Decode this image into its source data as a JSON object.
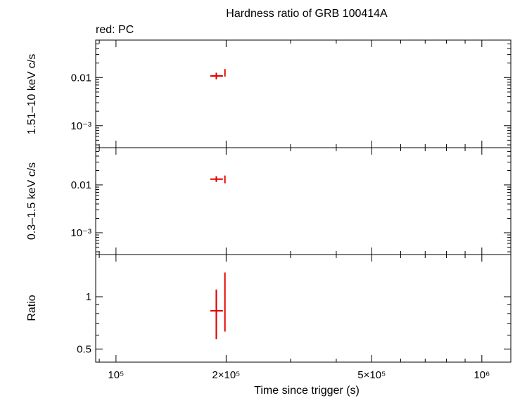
{
  "chart_data": {
    "type": "scatter",
    "title": "Hardness ratio of GRB 100414A",
    "subtitle": "red: PC",
    "xlabel": "Time since trigger (s)",
    "x_scale": "log",
    "xlim": [
      88000,
      1200000
    ],
    "x_ticks": [
      {
        "value": 100000,
        "label": "10⁵"
      },
      {
        "value": 200000,
        "label": "2×10⁵"
      },
      {
        "value": 500000,
        "label": "5×10⁵"
      },
      {
        "value": 1000000,
        "label": "10⁶"
      }
    ],
    "grid": false,
    "color": "#e00000",
    "panels": [
      {
        "id": "hard",
        "ylabel": "1.51–10 keV c/s",
        "y_scale": "log",
        "ylim": [
          0.00035,
          0.06
        ],
        "y_ticks": [
          {
            "value": 0.01,
            "label": "0.01"
          },
          {
            "value": 0.001,
            "label": "10⁻³"
          }
        ],
        "points": [
          {
            "x": 188000,
            "xerr": [
              181000,
              196000
            ],
            "y": 0.0108,
            "yerr": [
              0.0092,
              0.0126
            ]
          },
          {
            "x": 198500,
            "xerr": [
              198000,
              199000
            ],
            "y": 0.0125,
            "yerr": [
              0.0105,
              0.015
            ]
          }
        ]
      },
      {
        "id": "soft",
        "ylabel": "0.3–1.5 keV c/s",
        "y_scale": "log",
        "ylim": [
          0.00035,
          0.06
        ],
        "y_ticks": [
          {
            "value": 0.01,
            "label": "0.01"
          },
          {
            "value": 0.001,
            "label": "10⁻³"
          }
        ],
        "points": [
          {
            "x": 188000,
            "xerr": [
              181000,
              196000
            ],
            "y": 0.0132,
            "yerr": [
              0.0115,
              0.0152
            ]
          },
          {
            "x": 198500,
            "xerr": [
              198000,
              199000
            ],
            "y": 0.013,
            "yerr": [
              0.0108,
              0.0157
            ]
          }
        ]
      },
      {
        "id": "ratio",
        "ylabel": "Ratio",
        "y_scale": "log",
        "ylim": [
          0.42,
          1.75
        ],
        "y_ticks": [
          {
            "value": 1,
            "label": "1"
          },
          {
            "value": 0.5,
            "label": "0.5"
          }
        ],
        "points": [
          {
            "x": 188000,
            "xerr": [
              181000,
              196000
            ],
            "y": 0.83,
            "yerr": [
              0.57,
              1.1
            ]
          },
          {
            "x": 198500,
            "xerr": [
              198000,
              199000
            ],
            "y": 1.0,
            "yerr": [
              0.63,
              1.38
            ]
          }
        ]
      }
    ]
  }
}
